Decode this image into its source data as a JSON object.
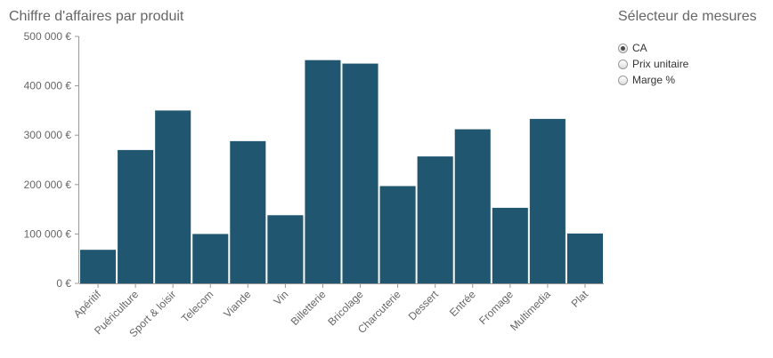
{
  "chart_title": "Chiffre d'affaires par produit",
  "measure_selector": {
    "title": "Sélecteur de mesures",
    "options": [
      {
        "label": "CA",
        "checked": true
      },
      {
        "label": "Prix unitaire",
        "checked": false
      },
      {
        "label": "Marge %",
        "checked": false
      }
    ]
  },
  "colors": {
    "bar": "#215670",
    "axis": "#999999",
    "text": "#666666"
  },
  "chart_data": {
    "type": "bar",
    "title": "Chiffre d'affaires par produit",
    "xlabel": "",
    "ylabel": "",
    "categories": [
      "Apéritif",
      "Puériculture",
      "Sport & loisir",
      "Telecom",
      "Viande",
      "Vin",
      "Billetterie",
      "Bricolage",
      "Charcuterie",
      "Dessert",
      "Entrée",
      "Fromage",
      "Multimedia",
      "Plat"
    ],
    "values": [
      68000,
      270000,
      350000,
      100000,
      288000,
      138000,
      452000,
      445000,
      197000,
      257000,
      312000,
      153000,
      333000,
      101000
    ],
    "ylim": [
      0,
      500000
    ],
    "y_ticks": [
      0,
      100000,
      200000,
      300000,
      400000,
      500000
    ],
    "y_tick_labels": [
      "0 €",
      "100 000 €",
      "200 000 €",
      "300 000 €",
      "400 000 €",
      "500 000 €"
    ],
    "grid": false,
    "legend": "none"
  }
}
